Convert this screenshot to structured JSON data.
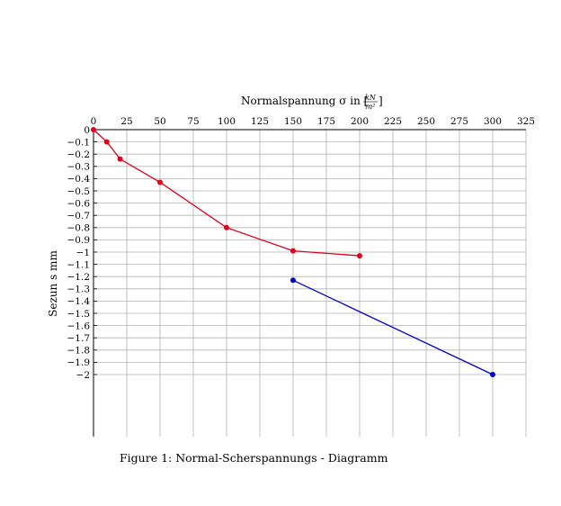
{
  "chart_data": {
    "type": "line",
    "xlabel": "Normalspannung σ in [",
    "xunit_num": "kN",
    "xunit_den": "m²",
    "xunit_close": "]",
    "ylabel": "Sezun s mm",
    "xlim": [
      0,
      325
    ],
    "ylim": [
      -2.5,
      0
    ],
    "x_axis_position": "top",
    "grid": true,
    "x_ticks": [
      0,
      25,
      50,
      75,
      100,
      125,
      150,
      175,
      200,
      225,
      250,
      275,
      300,
      325
    ],
    "x_tick_labels": [
      "0",
      "25",
      "50",
      "75",
      "100",
      "125",
      "150",
      "175",
      "200",
      "225",
      "250",
      "275",
      "300",
      "325"
    ],
    "y_ticks": [
      0,
      -0.1,
      -0.2,
      -0.3,
      -0.4,
      -0.5,
      -0.6,
      -0.7,
      -0.8,
      -0.9,
      -1,
      -1.1,
      -1.2,
      -1.3,
      -1.4,
      -1.5,
      -1.6,
      -1.7,
      -1.8,
      -1.9,
      -2
    ],
    "y_tick_labels": [
      "0",
      "−0.1",
      "−0.2",
      "−0.3",
      "−0.4",
      "−0.5",
      "−0.6",
      "−0.7",
      "−0.8",
      "−0.9",
      "−1",
      "−1.1",
      "−1.2",
      "−1.3",
      "−1.4",
      "−1.5",
      "−1.6",
      "−1.7",
      "−1.8",
      "−1.9",
      "−2"
    ],
    "series": [
      {
        "color": "#e0001b",
        "points": [
          [
            0,
            0
          ],
          [
            10,
            -0.1
          ],
          [
            20,
            -0.24
          ],
          [
            50,
            -0.43
          ],
          [
            100,
            -0.8
          ],
          [
            150,
            -0.99
          ],
          [
            200,
            -1.03
          ]
        ]
      },
      {
        "color": "#0000cc",
        "points": [
          [
            150,
            -1.23
          ],
          [
            300,
            -2.0
          ]
        ]
      }
    ]
  },
  "caption": "Figure 1:  Normal-Scherspannungs - Diagramm"
}
